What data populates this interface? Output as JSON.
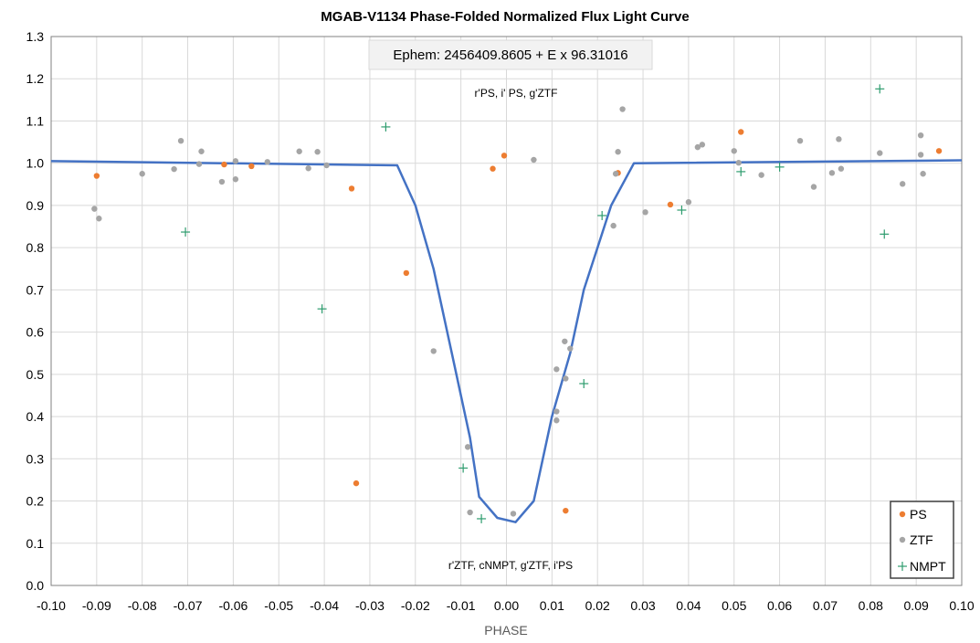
{
  "chart_data": {
    "type": "scatter",
    "title": "MGAB-V1134 Phase-Folded Normalized Flux Light Curve",
    "xlabel": "PHASE",
    "ylabel": "",
    "xlim": [
      -0.1,
      0.1
    ],
    "ylim": [
      0.0,
      1.3
    ],
    "x_ticks": [
      "-0.10",
      "-0.09",
      "-0.08",
      "-0.07",
      "-0.06",
      "-0.05",
      "-0.04",
      "-0.03",
      "-0.02",
      "-0.01",
      "0.00",
      "0.01",
      "0.02",
      "0.03",
      "0.04",
      "0.05",
      "0.06",
      "0.07",
      "0.08",
      "0.09",
      "0.10"
    ],
    "x_tick_values": [
      -0.1,
      -0.09,
      -0.08,
      -0.07,
      -0.06,
      -0.05,
      -0.04,
      -0.03,
      -0.02,
      -0.01,
      0.0,
      0.01,
      0.02,
      0.03,
      0.04,
      0.05,
      0.06,
      0.07,
      0.08,
      0.09,
      0.1
    ],
    "y_ticks": [
      "0.0",
      "0.1",
      "0.2",
      "0.3",
      "0.4",
      "0.5",
      "0.6",
      "0.7",
      "0.8",
      "0.9",
      "1.0",
      "1.1",
      "1.2",
      "1.3"
    ],
    "y_tick_values": [
      0.0,
      0.1,
      0.2,
      0.3,
      0.4,
      0.5,
      0.6,
      0.7,
      0.8,
      0.9,
      1.0,
      1.1,
      1.2,
      1.3
    ],
    "grid": true,
    "legend_position": "bottom-right",
    "annotations": {
      "ephem": "Ephem: 2456409.8605 + E x 96.31016",
      "top_filters": "r'PS, i' PS, g'ZTF",
      "bottom_filters": "r'ZTF, cNMPT, g'ZTF, i'PS"
    },
    "series": [
      {
        "name": "PS",
        "marker": "dot",
        "color": "#ED7D31",
        "points": [
          [
            -0.09,
            0.97
          ],
          [
            -0.062,
            0.997
          ],
          [
            -0.056,
            0.993
          ],
          [
            -0.034,
            0.94
          ],
          [
            -0.033,
            0.242
          ],
          [
            -0.022,
            0.74
          ],
          [
            -0.003,
            0.987
          ],
          [
            -0.0005,
            1.018
          ],
          [
            0.013,
            0.177
          ],
          [
            0.0245,
            0.977
          ],
          [
            0.036,
            0.902
          ],
          [
            0.0515,
            1.074
          ],
          [
            0.095,
            1.029
          ]
        ]
      },
      {
        "name": "ZTF",
        "marker": "dot",
        "color": "#A5A5A5",
        "points": [
          [
            -0.0905,
            0.892
          ],
          [
            -0.0895,
            0.869
          ],
          [
            -0.08,
            0.975
          ],
          [
            -0.073,
            0.986
          ],
          [
            -0.0715,
            1.053
          ],
          [
            -0.0675,
            0.998
          ],
          [
            -0.067,
            1.028
          ],
          [
            -0.0625,
            0.956
          ],
          [
            -0.0595,
            0.962
          ],
          [
            -0.0595,
            1.005
          ],
          [
            -0.0525,
            1.003
          ],
          [
            -0.0455,
            1.028
          ],
          [
            -0.0435,
            0.988
          ],
          [
            -0.0415,
            1.027
          ],
          [
            -0.0395,
            0.995
          ],
          [
            -0.016,
            0.555
          ],
          [
            -0.0085,
            0.328
          ],
          [
            -0.008,
            0.173
          ],
          [
            0.0015,
            0.17
          ],
          [
            0.006,
            1.008
          ],
          [
            0.011,
            0.512
          ],
          [
            0.011,
            0.412
          ],
          [
            0.011,
            0.391
          ],
          [
            0.0128,
            0.578
          ],
          [
            0.013,
            0.49
          ],
          [
            0.014,
            0.561
          ],
          [
            0.0235,
            0.852
          ],
          [
            0.024,
            0.975
          ],
          [
            0.0245,
            1.027
          ],
          [
            0.0255,
            1.128
          ],
          [
            0.0305,
            0.884
          ],
          [
            0.04,
            0.908
          ],
          [
            0.042,
            1.038
          ],
          [
            0.043,
            1.044
          ],
          [
            0.05,
            1.029
          ],
          [
            0.051,
            1.001
          ],
          [
            0.056,
            0.972
          ],
          [
            0.0645,
            1.053
          ],
          [
            0.0675,
            0.944
          ],
          [
            0.0715,
            0.977
          ],
          [
            0.073,
            1.057
          ],
          [
            0.0735,
            0.987
          ],
          [
            0.082,
            1.024
          ],
          [
            0.087,
            0.951
          ],
          [
            0.091,
            1.02
          ],
          [
            0.091,
            1.066
          ],
          [
            0.0915,
            0.975
          ]
        ]
      },
      {
        "name": "NMPT",
        "marker": "plus",
        "color": "#2E9C6E",
        "points": [
          [
            -0.0705,
            0.837
          ],
          [
            -0.0405,
            0.655
          ],
          [
            -0.0265,
            1.086
          ],
          [
            -0.0095,
            0.278
          ],
          [
            -0.0055,
            0.158
          ],
          [
            0.017,
            0.478
          ],
          [
            0.021,
            0.876
          ],
          [
            0.0385,
            0.889
          ],
          [
            0.0515,
            0.98
          ],
          [
            0.06,
            0.991
          ],
          [
            0.082,
            1.176
          ],
          [
            0.083,
            0.832
          ]
        ]
      },
      {
        "name": "model",
        "marker": "line",
        "color": "#4472C4",
        "points": [
          [
            -0.1,
            1.005
          ],
          [
            -0.024,
            0.995
          ],
          [
            -0.02,
            0.9
          ],
          [
            -0.016,
            0.75
          ],
          [
            -0.012,
            0.55
          ],
          [
            -0.008,
            0.35
          ],
          [
            -0.006,
            0.21
          ],
          [
            -0.002,
            0.16
          ],
          [
            0.002,
            0.15
          ],
          [
            0.006,
            0.2
          ],
          [
            0.01,
            0.4
          ],
          [
            0.014,
            0.55
          ],
          [
            0.017,
            0.7
          ],
          [
            0.02,
            0.8
          ],
          [
            0.023,
            0.9
          ],
          [
            0.028,
            1.0
          ],
          [
            0.1,
            1.007
          ]
        ]
      }
    ]
  }
}
